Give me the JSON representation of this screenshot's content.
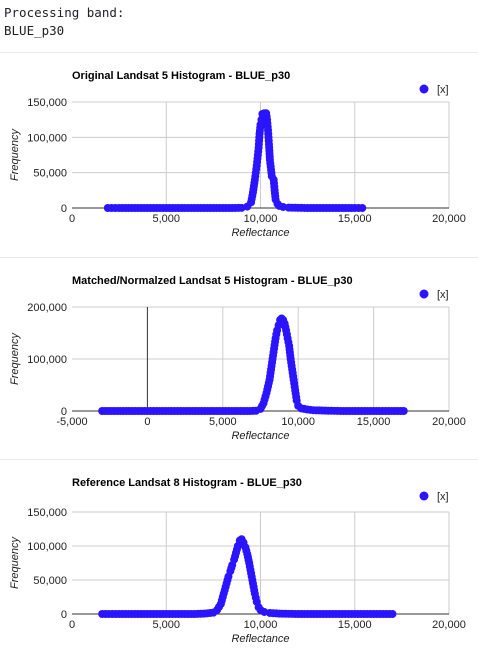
{
  "console": {
    "line1": "Processing band:",
    "line2": "BLUE_p30"
  },
  "theme": {
    "series_color": "#2b14ff",
    "grid_color": "#cccccc",
    "zero_color": "#333333",
    "text_color": "#222222",
    "axis_title_color": "#222222"
  },
  "chart_data": [
    {
      "type": "scatter",
      "title": "Original Landsat 5 Histogram - BLUE_p30",
      "xlabel": "Reflectance",
      "ylabel": "Frequency",
      "legend": "[x]",
      "legend_position": "top-right",
      "xlim": [
        0,
        20000
      ],
      "ylim": [
        0,
        150000
      ],
      "xticks": [
        0,
        5000,
        10000,
        15000,
        20000
      ],
      "xtick_labels": [
        "0",
        "5,000",
        "10,000",
        "15,000",
        "20,000"
      ],
      "yticks": [
        0,
        50000,
        100000,
        150000
      ],
      "ytick_labels": [
        "0",
        "50,000",
        "100,000",
        "150,000"
      ],
      "points": [
        [
          1900,
          0
        ],
        [
          2500,
          0
        ],
        [
          3000,
          0
        ],
        [
          3500,
          0
        ],
        [
          4000,
          0
        ],
        [
          4500,
          0
        ],
        [
          5000,
          0
        ],
        [
          5500,
          0
        ],
        [
          6000,
          0
        ],
        [
          6500,
          0
        ],
        [
          7000,
          0
        ],
        [
          7500,
          0
        ],
        [
          8000,
          0
        ],
        [
          8500,
          0
        ],
        [
          9000,
          200
        ],
        [
          9300,
          2000
        ],
        [
          9500,
          8000
        ],
        [
          9600,
          22000
        ],
        [
          9700,
          40000
        ],
        [
          9800,
          60000
        ],
        [
          9900,
          85000
        ],
        [
          9950,
          105000
        ],
        [
          10000,
          118000
        ],
        [
          10050,
          125000
        ],
        [
          10100,
          133000
        ],
        [
          10200,
          134000
        ],
        [
          10300,
          134000
        ],
        [
          10350,
          125000
        ],
        [
          10400,
          110000
        ],
        [
          10450,
          90000
        ],
        [
          10500,
          68000
        ],
        [
          10600,
          45000
        ],
        [
          10700,
          40000
        ],
        [
          10750,
          25000
        ],
        [
          10800,
          12000
        ],
        [
          10900,
          6000
        ],
        [
          11000,
          3000
        ],
        [
          11200,
          1500
        ],
        [
          11500,
          500
        ],
        [
          12000,
          200
        ],
        [
          12500,
          0
        ],
        [
          13000,
          0
        ],
        [
          13500,
          0
        ],
        [
          14000,
          0
        ],
        [
          14500,
          0
        ],
        [
          15000,
          0
        ],
        [
          15400,
          0
        ]
      ]
    },
    {
      "type": "scatter",
      "title": "Matched/Normalzed Landsat 5 Histogram - BLUE_p30",
      "xlabel": "Reflectance",
      "ylabel": "Frequency",
      "legend": "[x]",
      "legend_position": "top-right",
      "xlim": [
        -5000,
        20000
      ],
      "ylim": [
        0,
        200000
      ],
      "xticks": [
        -5000,
        0,
        5000,
        10000,
        15000,
        20000
      ],
      "xtick_labels": [
        "-5,000",
        "0",
        "5,000",
        "10,000",
        "15,000",
        "20,000"
      ],
      "yticks": [
        0,
        100000,
        200000
      ],
      "ytick_labels": [
        "0",
        "100,000",
        "200,000"
      ],
      "points": [
        [
          -3000,
          0
        ],
        [
          -2000,
          0
        ],
        [
          -1000,
          0
        ],
        [
          0,
          0
        ],
        [
          1000,
          0
        ],
        [
          2000,
          0
        ],
        [
          3000,
          0
        ],
        [
          4000,
          0
        ],
        [
          5000,
          0
        ],
        [
          6000,
          0
        ],
        [
          6800,
          0
        ],
        [
          7200,
          500
        ],
        [
          7500,
          4000
        ],
        [
          7700,
          15000
        ],
        [
          7900,
          35000
        ],
        [
          8100,
          60000
        ],
        [
          8200,
          80000
        ],
        [
          8300,
          100000
        ],
        [
          8400,
          120000
        ],
        [
          8500,
          140000
        ],
        [
          8600,
          155000
        ],
        [
          8700,
          165000
        ],
        [
          8800,
          175000
        ],
        [
          8900,
          178000
        ],
        [
          9000,
          175000
        ],
        [
          9100,
          168000
        ],
        [
          9200,
          155000
        ],
        [
          9300,
          140000
        ],
        [
          9400,
          125000
        ],
        [
          9500,
          100000
        ],
        [
          9600,
          80000
        ],
        [
          9700,
          60000
        ],
        [
          9800,
          40000
        ],
        [
          9900,
          20000
        ],
        [
          10000,
          10000
        ],
        [
          10200,
          5000
        ],
        [
          10600,
          3000
        ],
        [
          11000,
          1500
        ],
        [
          12000,
          500
        ],
        [
          13000,
          0
        ],
        [
          14000,
          0
        ],
        [
          15000,
          0
        ],
        [
          16000,
          0
        ],
        [
          17000,
          0
        ]
      ]
    },
    {
      "type": "scatter",
      "title": "Reference Landsat 8 Histogram - BLUE_p30",
      "xlabel": "Reflectance",
      "ylabel": "Frequency",
      "legend": "[x]",
      "legend_position": "top-right",
      "xlim": [
        0,
        20000
      ],
      "ylim": [
        0,
        150000
      ],
      "xticks": [
        0,
        5000,
        10000,
        15000,
        20000
      ],
      "xtick_labels": [
        "0",
        "5,000",
        "10,000",
        "15,000",
        "20,000"
      ],
      "yticks": [
        0,
        50000,
        100000,
        150000
      ],
      "ytick_labels": [
        "0",
        "50,000",
        "100,000",
        "150,000"
      ],
      "points": [
        [
          1600,
          0
        ],
        [
          2500,
          0
        ],
        [
          3500,
          0
        ],
        [
          4500,
          0
        ],
        [
          5500,
          0
        ],
        [
          6500,
          0
        ],
        [
          7000,
          500
        ],
        [
          7500,
          2000
        ],
        [
          7700,
          6000
        ],
        [
          7900,
          15000
        ],
        [
          8000,
          25000
        ],
        [
          8100,
          35000
        ],
        [
          8200,
          45000
        ],
        [
          8300,
          55000
        ],
        [
          8400,
          63000
        ],
        [
          8500,
          72000
        ],
        [
          8600,
          80000
        ],
        [
          8700,
          90000
        ],
        [
          8800,
          100000
        ],
        [
          8900,
          108000
        ],
        [
          9000,
          110000
        ],
        [
          9100,
          105000
        ],
        [
          9200,
          98000
        ],
        [
          9300,
          88000
        ],
        [
          9400,
          75000
        ],
        [
          9500,
          60000
        ],
        [
          9600,
          45000
        ],
        [
          9700,
          30000
        ],
        [
          9800,
          18000
        ],
        [
          9900,
          10000
        ],
        [
          10000,
          6000
        ],
        [
          10200,
          3000
        ],
        [
          10500,
          1500
        ],
        [
          11000,
          500
        ],
        [
          12000,
          0
        ],
        [
          13000,
          0
        ],
        [
          14000,
          0
        ],
        [
          15000,
          0
        ],
        [
          16000,
          0
        ],
        [
          17000,
          0
        ]
      ]
    }
  ]
}
